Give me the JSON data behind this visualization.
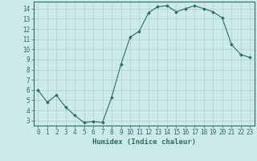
{
  "x": [
    0,
    1,
    2,
    3,
    4,
    5,
    6,
    7,
    8,
    9,
    10,
    11,
    12,
    13,
    14,
    15,
    16,
    17,
    18,
    19,
    20,
    21,
    22,
    23
  ],
  "y": [
    6.0,
    4.8,
    5.5,
    4.3,
    3.5,
    2.8,
    2.9,
    2.8,
    5.3,
    8.5,
    11.2,
    11.8,
    13.6,
    14.2,
    14.3,
    13.7,
    14.0,
    14.3,
    14.0,
    13.7,
    13.1,
    10.5,
    9.5,
    9.2
  ],
  "xlabel": "Humidex (Indice chaleur)",
  "xlim": [
    -0.5,
    23.5
  ],
  "ylim": [
    2.5,
    14.7
  ],
  "yticks": [
    3,
    4,
    5,
    6,
    7,
    8,
    9,
    10,
    11,
    12,
    13,
    14
  ],
  "xticks": [
    0,
    1,
    2,
    3,
    4,
    5,
    6,
    7,
    8,
    9,
    10,
    11,
    12,
    13,
    14,
    15,
    16,
    17,
    18,
    19,
    20,
    21,
    22,
    23
  ],
  "line_color": "#2d6b6b",
  "marker_color": "#2d6b6b",
  "bg_color": "#cceaea",
  "grid_color": "#b0d0d0",
  "axis_color": "#2d6b6b",
  "label_color": "#2d6b6b",
  "tick_fontsize": 5.5,
  "xlabel_fontsize": 6.5
}
